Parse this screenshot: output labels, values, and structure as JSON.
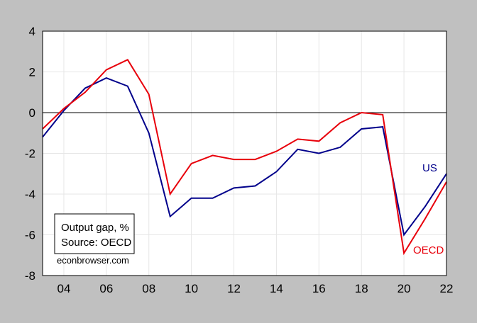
{
  "chart_data": {
    "type": "line",
    "x": [
      2003,
      2004,
      2005,
      2006,
      2007,
      2008,
      2009,
      2010,
      2011,
      2012,
      2013,
      2014,
      2015,
      2016,
      2017,
      2018,
      2019,
      2020,
      2021,
      2022
    ],
    "series": [
      {
        "name": "US",
        "color": "#00008b",
        "values": [
          -1.2,
          0.1,
          1.2,
          1.7,
          1.3,
          -1.0,
          -5.1,
          -4.2,
          -4.2,
          -3.7,
          -3.6,
          -2.9,
          -1.8,
          -2.0,
          -1.7,
          -0.8,
          -0.7,
          -6.0,
          -4.6,
          -3.0
        ]
      },
      {
        "name": "OECD",
        "color": "#e8000b",
        "values": [
          -0.8,
          0.2,
          1.0,
          2.1,
          2.6,
          0.9,
          -4.0,
          -2.5,
          -2.1,
          -2.3,
          -2.3,
          -1.9,
          -1.3,
          -1.4,
          -0.5,
          0.0,
          -0.1,
          -6.9,
          -5.2,
          -3.4
        ]
      }
    ],
    "xlim": [
      2003,
      2022
    ],
    "ylim": [
      -8,
      4
    ],
    "yticks": [
      4,
      2,
      0,
      -2,
      -4,
      -6,
      -8
    ],
    "ytick_labels": [
      "4",
      "2",
      "0",
      "-2",
      "-4",
      "-6",
      "-8"
    ],
    "xticks": [
      2004,
      2006,
      2008,
      2010,
      2012,
      2014,
      2016,
      2018,
      2020,
      2022
    ],
    "xtick_labels": [
      "04",
      "06",
      "08",
      "10",
      "12",
      "14",
      "16",
      "18",
      "20",
      "22"
    ],
    "zero_line": true,
    "grid": true,
    "series_labels": [
      "US",
      "OECD"
    ],
    "annotation": {
      "line1": "Output gap, %",
      "line2": "Source: OECD"
    },
    "watermark": "econbrowser.com"
  }
}
